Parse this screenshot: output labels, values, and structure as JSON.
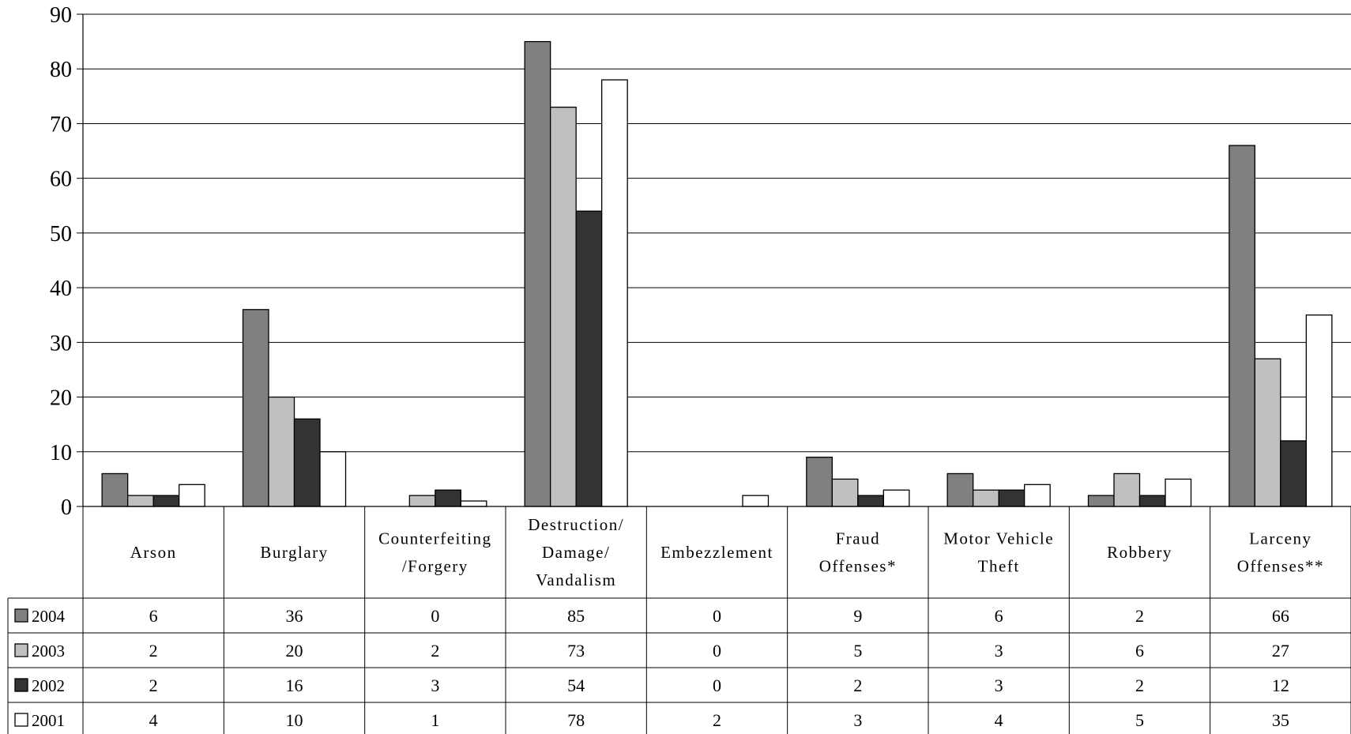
{
  "chart_data": {
    "type": "bar",
    "categories": [
      [
        "Arson"
      ],
      [
        "Burglary"
      ],
      [
        "Counterfeiting",
        "/Forgery"
      ],
      [
        "Destruction/",
        "Damage/",
        "Vandalism"
      ],
      [
        "Embezzlement"
      ],
      [
        "Fraud",
        "Offenses*"
      ],
      [
        "Motor Vehicle",
        "Theft"
      ],
      [
        "Robbery"
      ],
      [
        "Larceny",
        "Offenses**"
      ]
    ],
    "series": [
      {
        "name": "2004",
        "color": "#808080",
        "values": [
          6,
          36,
          0,
          85,
          0,
          9,
          6,
          2,
          66
        ]
      },
      {
        "name": "2003",
        "color": "#c0c0c0",
        "values": [
          2,
          20,
          2,
          73,
          0,
          5,
          3,
          6,
          27
        ]
      },
      {
        "name": "2002",
        "color": "#333333",
        "values": [
          2,
          16,
          3,
          54,
          0,
          2,
          3,
          2,
          12
        ]
      },
      {
        "name": "2001",
        "color": "#ffffff",
        "values": [
          4,
          10,
          1,
          78,
          2,
          3,
          4,
          5,
          35
        ]
      }
    ],
    "yticks": [
      0,
      10,
      20,
      30,
      40,
      50,
      60,
      70,
      80,
      90
    ],
    "ylim": [
      0,
      90
    ],
    "grid": true,
    "legend": "data-table-left"
  }
}
